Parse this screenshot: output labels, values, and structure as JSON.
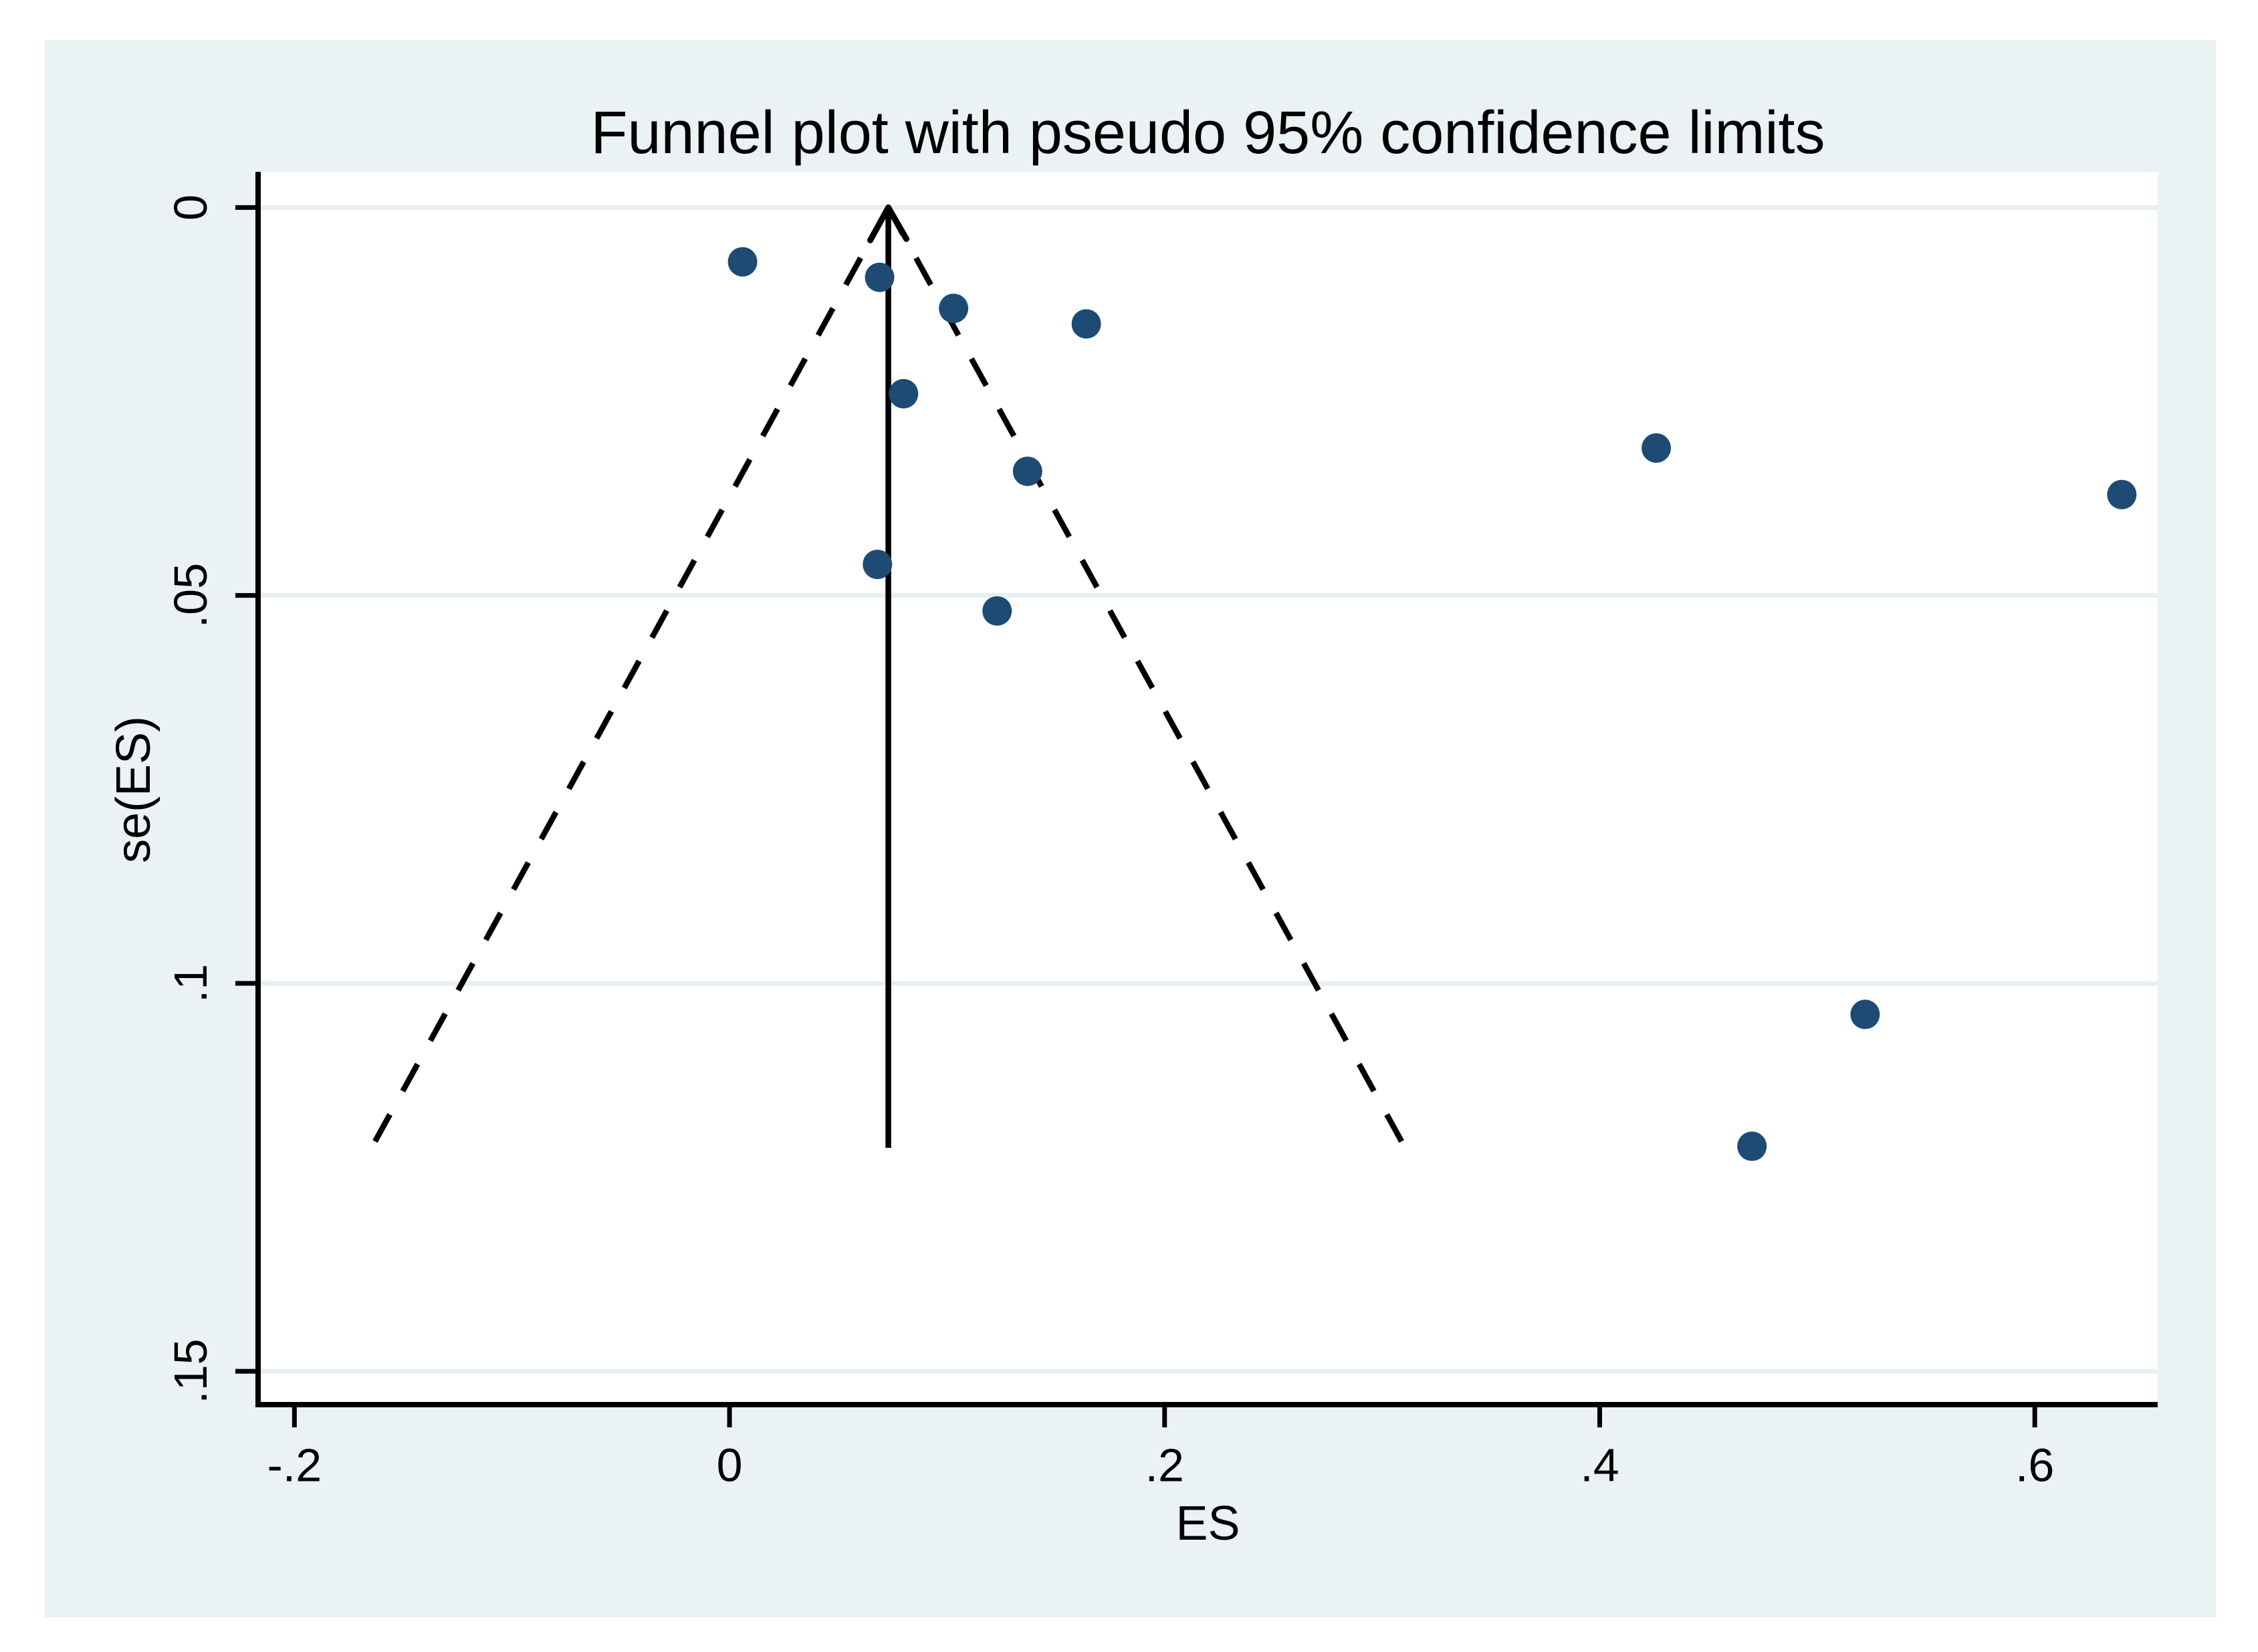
{
  "window": {
    "background": "#ffffff",
    "figure_background": "#eaf2f3"
  },
  "colors": {
    "plot_background": "#ffffff",
    "grid": "#e6eff2",
    "axis": "#000000",
    "text": "#000000",
    "marker": "#1d4b73",
    "funnel_line": "#000000"
  },
  "chart_data": {
    "type": "scatter",
    "subtype": "funnel-plot",
    "title": "Funnel plot with pseudo 95% confidence limits",
    "xlabel": "ES",
    "ylabel": "se(ES)",
    "xlim": [
      -0.2167,
      0.6565
    ],
    "ylim": [
      -0.0046,
      0.1543
    ],
    "y_inverted": true,
    "grid": "horizontal-only",
    "legend": "none",
    "xticks": {
      "values": [
        -0.2,
        0,
        0.2,
        0.4,
        0.6
      ],
      "labels": [
        "-.2",
        "0",
        ".2",
        ".4",
        ".6"
      ]
    },
    "yticks": {
      "values": [
        0,
        0.05,
        0.1,
        0.15
      ],
      "labels": [
        "0",
        ".05",
        ".1",
        ".15"
      ]
    },
    "points": [
      {
        "es": 0.006,
        "se": 0.007
      },
      {
        "es": 0.069,
        "se": 0.009
      },
      {
        "es": 0.103,
        "se": 0.013
      },
      {
        "es": 0.164,
        "se": 0.015
      },
      {
        "es": 0.08,
        "se": 0.024
      },
      {
        "es": 0.137,
        "se": 0.034
      },
      {
        "es": 0.068,
        "se": 0.046
      },
      {
        "es": 0.123,
        "se": 0.052
      },
      {
        "es": 0.426,
        "se": 0.031
      },
      {
        "es": 0.64,
        "se": 0.037
      },
      {
        "es": 0.522,
        "se": 0.104
      },
      {
        "es": 0.47,
        "se": 0.121
      }
    ],
    "pooled_effect": {
      "es": 0.073,
      "line_style": "solid-vertical-arrow-up"
    },
    "funnel": {
      "apex_es": 0.073,
      "apex_se": 0.0,
      "max_se": 0.1212,
      "ci_multiplier": 1.96,
      "left_end_es": -0.165,
      "right_end_es": 0.311,
      "line_style": "dashed"
    }
  }
}
